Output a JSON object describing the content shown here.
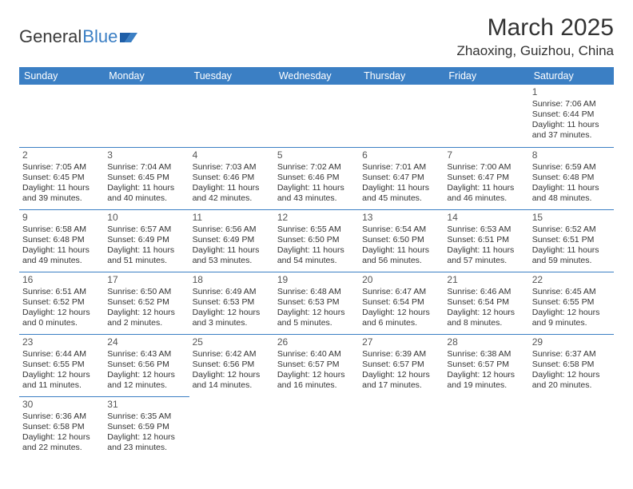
{
  "brand": {
    "part1": "General",
    "part2": "Blue"
  },
  "title": "March 2025",
  "location": "Zhaoxing, Guizhou, China",
  "colors": {
    "header_bg": "#3b7fc4",
    "header_text": "#ffffff",
    "border": "#3b7fc4",
    "text": "#333333",
    "background": "#ffffff"
  },
  "typography": {
    "title_fontsize_pt": 22,
    "location_fontsize_pt": 13,
    "daynum_fontsize_pt": 9,
    "body_fontsize_pt": 8
  },
  "dayNames": [
    "Sunday",
    "Monday",
    "Tuesday",
    "Wednesday",
    "Thursday",
    "Friday",
    "Saturday"
  ],
  "weeks": [
    [
      null,
      null,
      null,
      null,
      null,
      null,
      {
        "n": "1",
        "sr": "Sunrise: 7:06 AM",
        "ss": "Sunset: 6:44 PM",
        "dl": "Daylight: 11 hours and 37 minutes."
      }
    ],
    [
      {
        "n": "2",
        "sr": "Sunrise: 7:05 AM",
        "ss": "Sunset: 6:45 PM",
        "dl": "Daylight: 11 hours and 39 minutes."
      },
      {
        "n": "3",
        "sr": "Sunrise: 7:04 AM",
        "ss": "Sunset: 6:45 PM",
        "dl": "Daylight: 11 hours and 40 minutes."
      },
      {
        "n": "4",
        "sr": "Sunrise: 7:03 AM",
        "ss": "Sunset: 6:46 PM",
        "dl": "Daylight: 11 hours and 42 minutes."
      },
      {
        "n": "5",
        "sr": "Sunrise: 7:02 AM",
        "ss": "Sunset: 6:46 PM",
        "dl": "Daylight: 11 hours and 43 minutes."
      },
      {
        "n": "6",
        "sr": "Sunrise: 7:01 AM",
        "ss": "Sunset: 6:47 PM",
        "dl": "Daylight: 11 hours and 45 minutes."
      },
      {
        "n": "7",
        "sr": "Sunrise: 7:00 AM",
        "ss": "Sunset: 6:47 PM",
        "dl": "Daylight: 11 hours and 46 minutes."
      },
      {
        "n": "8",
        "sr": "Sunrise: 6:59 AM",
        "ss": "Sunset: 6:48 PM",
        "dl": "Daylight: 11 hours and 48 minutes."
      }
    ],
    [
      {
        "n": "9",
        "sr": "Sunrise: 6:58 AM",
        "ss": "Sunset: 6:48 PM",
        "dl": "Daylight: 11 hours and 49 minutes."
      },
      {
        "n": "10",
        "sr": "Sunrise: 6:57 AM",
        "ss": "Sunset: 6:49 PM",
        "dl": "Daylight: 11 hours and 51 minutes."
      },
      {
        "n": "11",
        "sr": "Sunrise: 6:56 AM",
        "ss": "Sunset: 6:49 PM",
        "dl": "Daylight: 11 hours and 53 minutes."
      },
      {
        "n": "12",
        "sr": "Sunrise: 6:55 AM",
        "ss": "Sunset: 6:50 PM",
        "dl": "Daylight: 11 hours and 54 minutes."
      },
      {
        "n": "13",
        "sr": "Sunrise: 6:54 AM",
        "ss": "Sunset: 6:50 PM",
        "dl": "Daylight: 11 hours and 56 minutes."
      },
      {
        "n": "14",
        "sr": "Sunrise: 6:53 AM",
        "ss": "Sunset: 6:51 PM",
        "dl": "Daylight: 11 hours and 57 minutes."
      },
      {
        "n": "15",
        "sr": "Sunrise: 6:52 AM",
        "ss": "Sunset: 6:51 PM",
        "dl": "Daylight: 11 hours and 59 minutes."
      }
    ],
    [
      {
        "n": "16",
        "sr": "Sunrise: 6:51 AM",
        "ss": "Sunset: 6:52 PM",
        "dl": "Daylight: 12 hours and 0 minutes."
      },
      {
        "n": "17",
        "sr": "Sunrise: 6:50 AM",
        "ss": "Sunset: 6:52 PM",
        "dl": "Daylight: 12 hours and 2 minutes."
      },
      {
        "n": "18",
        "sr": "Sunrise: 6:49 AM",
        "ss": "Sunset: 6:53 PM",
        "dl": "Daylight: 12 hours and 3 minutes."
      },
      {
        "n": "19",
        "sr": "Sunrise: 6:48 AM",
        "ss": "Sunset: 6:53 PM",
        "dl": "Daylight: 12 hours and 5 minutes."
      },
      {
        "n": "20",
        "sr": "Sunrise: 6:47 AM",
        "ss": "Sunset: 6:54 PM",
        "dl": "Daylight: 12 hours and 6 minutes."
      },
      {
        "n": "21",
        "sr": "Sunrise: 6:46 AM",
        "ss": "Sunset: 6:54 PM",
        "dl": "Daylight: 12 hours and 8 minutes."
      },
      {
        "n": "22",
        "sr": "Sunrise: 6:45 AM",
        "ss": "Sunset: 6:55 PM",
        "dl": "Daylight: 12 hours and 9 minutes."
      }
    ],
    [
      {
        "n": "23",
        "sr": "Sunrise: 6:44 AM",
        "ss": "Sunset: 6:55 PM",
        "dl": "Daylight: 12 hours and 11 minutes."
      },
      {
        "n": "24",
        "sr": "Sunrise: 6:43 AM",
        "ss": "Sunset: 6:56 PM",
        "dl": "Daylight: 12 hours and 12 minutes."
      },
      {
        "n": "25",
        "sr": "Sunrise: 6:42 AM",
        "ss": "Sunset: 6:56 PM",
        "dl": "Daylight: 12 hours and 14 minutes."
      },
      {
        "n": "26",
        "sr": "Sunrise: 6:40 AM",
        "ss": "Sunset: 6:57 PM",
        "dl": "Daylight: 12 hours and 16 minutes."
      },
      {
        "n": "27",
        "sr": "Sunrise: 6:39 AM",
        "ss": "Sunset: 6:57 PM",
        "dl": "Daylight: 12 hours and 17 minutes."
      },
      {
        "n": "28",
        "sr": "Sunrise: 6:38 AM",
        "ss": "Sunset: 6:57 PM",
        "dl": "Daylight: 12 hours and 19 minutes."
      },
      {
        "n": "29",
        "sr": "Sunrise: 6:37 AM",
        "ss": "Sunset: 6:58 PM",
        "dl": "Daylight: 12 hours and 20 minutes."
      }
    ],
    [
      {
        "n": "30",
        "sr": "Sunrise: 6:36 AM",
        "ss": "Sunset: 6:58 PM",
        "dl": "Daylight: 12 hours and 22 minutes."
      },
      {
        "n": "31",
        "sr": "Sunrise: 6:35 AM",
        "ss": "Sunset: 6:59 PM",
        "dl": "Daylight: 12 hours and 23 minutes."
      },
      null,
      null,
      null,
      null,
      null
    ]
  ]
}
